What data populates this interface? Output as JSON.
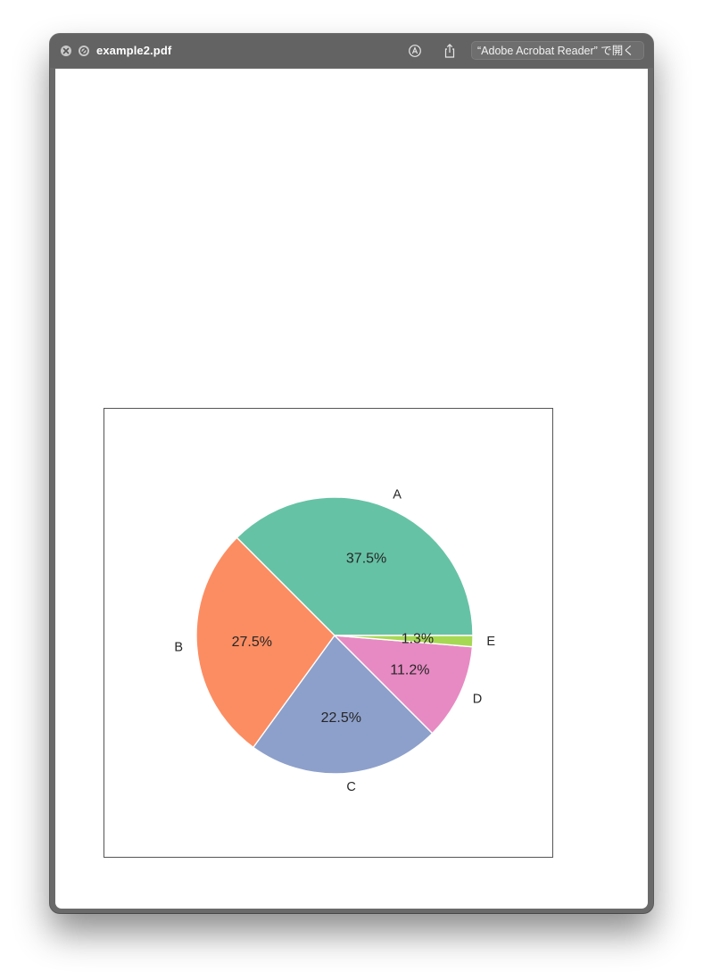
{
  "window": {
    "title": "example2.pdf",
    "open_with_label": "“Adobe Acrobat Reader” で開く"
  },
  "toolbar": {
    "close_icon": "close-icon",
    "block_icon": "block-icon",
    "markup_icon": "markup-pen-icon",
    "share_icon": "share-icon"
  },
  "chart_data": {
    "type": "pie",
    "categories": [
      "A",
      "B",
      "C",
      "D",
      "E"
    ],
    "values": [
      37.5,
      27.5,
      22.5,
      11.2,
      1.3
    ],
    "labels": [
      "37.5%",
      "27.5%",
      "22.5%",
      "11.2%",
      "1.3%"
    ],
    "colors": [
      "#66c2a5",
      "#fc8d62",
      "#8da0cb",
      "#e78ac3",
      "#a6d854"
    ],
    "start_angle": 0,
    "direction": "counterclockwise"
  }
}
